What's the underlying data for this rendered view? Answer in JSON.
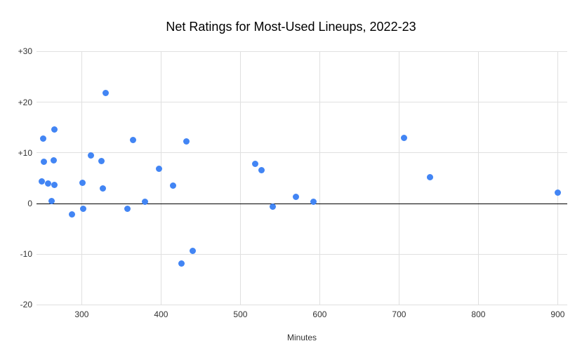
{
  "chart_data": {
    "type": "scatter",
    "title": "Net Ratings for Most-Used Lineups, 2022-23",
    "xlabel": "Minutes",
    "ylabel": "",
    "xlim": [
      243,
      912
    ],
    "ylim": [
      -20,
      30
    ],
    "x_ticks": [
      300,
      400,
      500,
      600,
      700,
      800,
      900
    ],
    "y_ticks": [
      {
        "value": 30,
        "label": "+30"
      },
      {
        "value": 20,
        "label": "+20"
      },
      {
        "value": 10,
        "label": "+10"
      },
      {
        "value": 0,
        "label": "0"
      },
      {
        "value": -10,
        "label": "-10"
      },
      {
        "value": -20,
        "label": "-20"
      }
    ],
    "grid": true,
    "legend_position": "none",
    "colors": {
      "point": "#4285F4",
      "grid": "#E0E0E0",
      "zero_line": "#000000",
      "tick_label": "#333333",
      "title": "#000000",
      "background": "#FFFFFF"
    },
    "points": [
      {
        "x": 330,
        "y": 21.8
      },
      {
        "x": 266,
        "y": 14.6
      },
      {
        "x": 251,
        "y": 12.8
      },
      {
        "x": 365,
        "y": 12.5
      },
      {
        "x": 432,
        "y": 12.3
      },
      {
        "x": 312,
        "y": 9.5
      },
      {
        "x": 252,
        "y": 8.2
      },
      {
        "x": 265,
        "y": 8.5
      },
      {
        "x": 325,
        "y": 8.4
      },
      {
        "x": 397,
        "y": 6.9
      },
      {
        "x": 519,
        "y": 7.8
      },
      {
        "x": 527,
        "y": 6.6
      },
      {
        "x": 250,
        "y": 4.3
      },
      {
        "x": 258,
        "y": 3.9
      },
      {
        "x": 266,
        "y": 3.7
      },
      {
        "x": 301,
        "y": 4.1
      },
      {
        "x": 327,
        "y": 3.0
      },
      {
        "x": 415,
        "y": 3.6
      },
      {
        "x": 262,
        "y": 0.5
      },
      {
        "x": 380,
        "y": 0.4
      },
      {
        "x": 592,
        "y": 0.4
      },
      {
        "x": 570,
        "y": 1.3
      },
      {
        "x": 288,
        "y": -2.1
      },
      {
        "x": 302,
        "y": -1.1
      },
      {
        "x": 358,
        "y": -1.0
      },
      {
        "x": 541,
        "y": -0.6
      },
      {
        "x": 440,
        "y": -9.3
      },
      {
        "x": 426,
        "y": -11.9
      },
      {
        "x": 706,
        "y": 12.9
      },
      {
        "x": 739,
        "y": 5.2
      },
      {
        "x": 900,
        "y": 2.2
      }
    ]
  }
}
